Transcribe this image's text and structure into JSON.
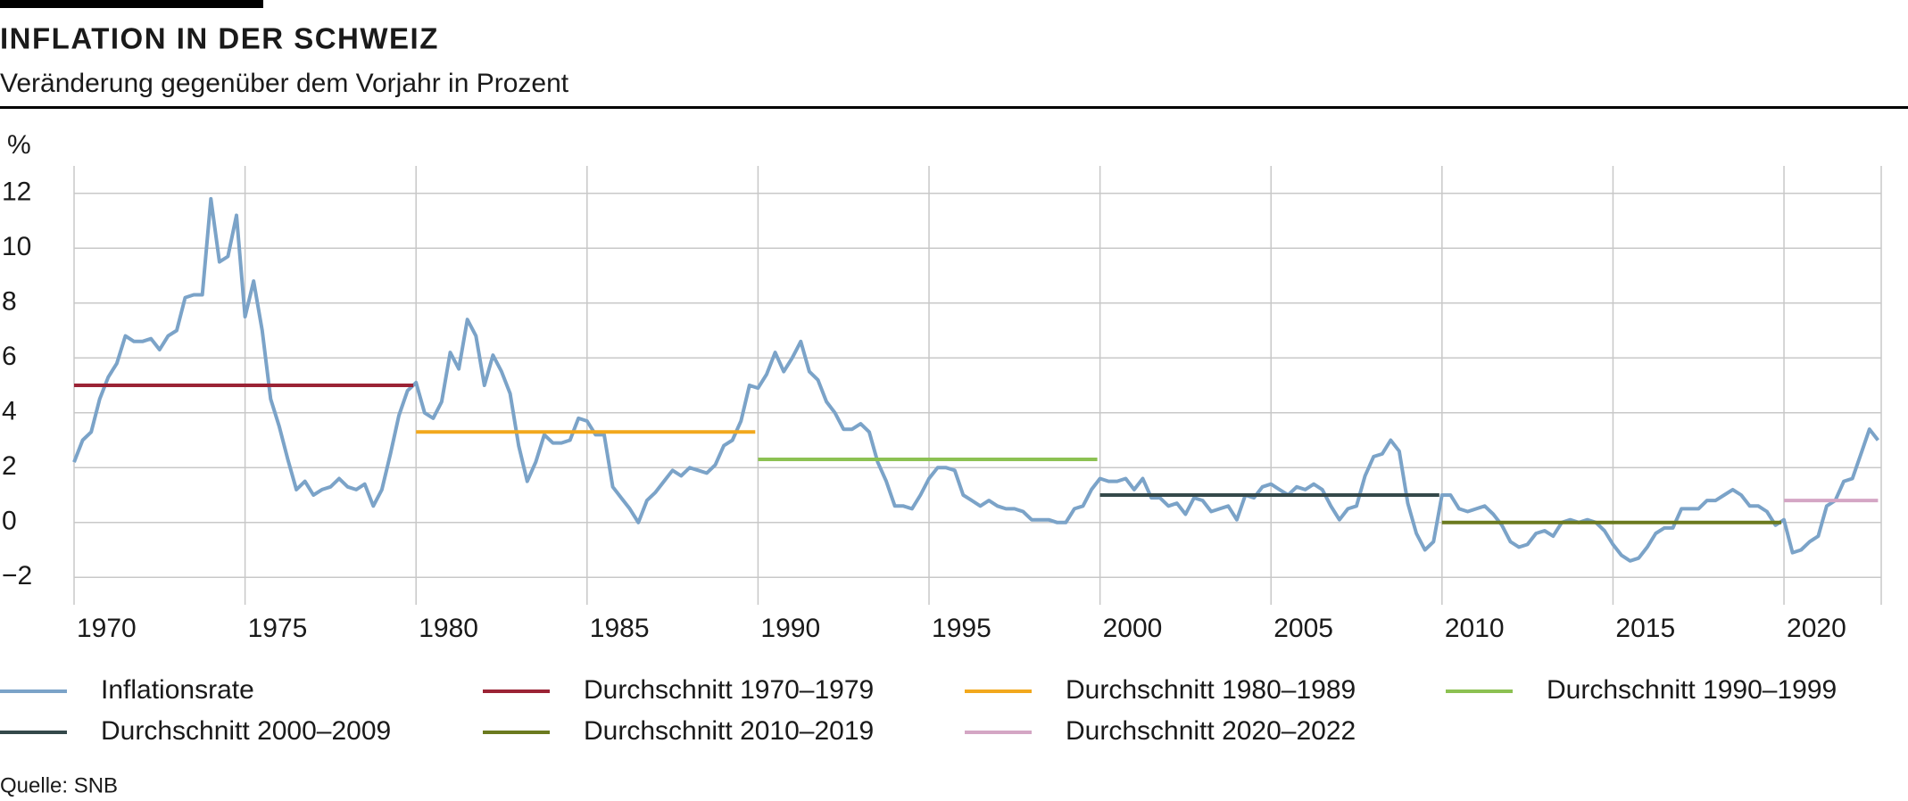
{
  "chart_data": {
    "type": "line",
    "title": "INFLATION IN DER SCHWEIZ",
    "subtitle": "Veränderung gegenüber dem Vorjahr in Prozent",
    "y_label": "%",
    "source": "Quelle: SNB",
    "xlim": [
      1970,
      2023
    ],
    "xticks": [
      1970,
      1975,
      1980,
      1985,
      1990,
      1995,
      2000,
      2005,
      2010,
      2015,
      2020
    ],
    "ylim": [
      -3,
      13
    ],
    "yticks": [
      {
        "value": -2,
        "label": "−2"
      },
      0,
      2,
      4,
      6,
      8,
      10,
      12
    ],
    "grid": true,
    "legend": "bottom",
    "series": [
      {
        "name": "Inflationsrate",
        "color": "#7ba3c8",
        "x": [
          1970,
          1970.25,
          1970.5,
          1970.75,
          1971,
          1971.25,
          1971.5,
          1971.75,
          1972,
          1972.25,
          1972.5,
          1972.75,
          1973,
          1973.25,
          1973.5,
          1973.75,
          1974,
          1974.25,
          1974.5,
          1974.75,
          1975,
          1975.25,
          1975.5,
          1975.75,
          1976,
          1976.25,
          1976.5,
          1976.75,
          1977,
          1977.25,
          1977.5,
          1977.75,
          1978,
          1978.25,
          1978.5,
          1978.75,
          1979,
          1979.25,
          1979.5,
          1979.75,
          1980,
          1980.25,
          1980.5,
          1980.75,
          1981,
          1981.25,
          1981.5,
          1981.75,
          1982,
          1982.25,
          1982.5,
          1982.75,
          1983,
          1983.25,
          1983.5,
          1983.75,
          1984,
          1984.25,
          1984.5,
          1984.75,
          1985,
          1985.25,
          1985.5,
          1985.75,
          1986,
          1986.25,
          1986.5,
          1986.75,
          1987,
          1987.25,
          1987.5,
          1987.75,
          1988,
          1988.25,
          1988.5,
          1988.75,
          1989,
          1989.25,
          1989.5,
          1989.75,
          1990,
          1990.25,
          1990.5,
          1990.75,
          1991,
          1991.25,
          1991.5,
          1991.75,
          1992,
          1992.25,
          1992.5,
          1992.75,
          1993,
          1993.25,
          1993.5,
          1993.75,
          1994,
          1994.25,
          1994.5,
          1994.75,
          1995,
          1995.25,
          1995.5,
          1995.75,
          1996,
          1996.25,
          1996.5,
          1996.75,
          1997,
          1997.25,
          1997.5,
          1997.75,
          1998,
          1998.25,
          1998.5,
          1998.75,
          1999,
          1999.25,
          1999.5,
          1999.75,
          2000,
          2000.25,
          2000.5,
          2000.75,
          2001,
          2001.25,
          2001.5,
          2001.75,
          2002,
          2002.25,
          2002.5,
          2002.75,
          2003,
          2003.25,
          2003.5,
          2003.75,
          2004,
          2004.25,
          2004.5,
          2004.75,
          2005,
          2005.25,
          2005.5,
          2005.75,
          2006,
          2006.25,
          2006.5,
          2006.75,
          2007,
          2007.25,
          2007.5,
          2007.75,
          2008,
          2008.25,
          2008.5,
          2008.75,
          2009,
          2009.25,
          2009.5,
          2009.75,
          2010,
          2010.25,
          2010.5,
          2010.75,
          2011,
          2011.25,
          2011.5,
          2011.75,
          2012,
          2012.25,
          2012.5,
          2012.75,
          2013,
          2013.25,
          2013.5,
          2013.75,
          2014,
          2014.25,
          2014.5,
          2014.75,
          2015,
          2015.25,
          2015.5,
          2015.75,
          2016,
          2016.25,
          2016.5,
          2016.75,
          2017,
          2017.25,
          2017.5,
          2017.75,
          2018,
          2018.25,
          2018.5,
          2018.75,
          2019,
          2019.25,
          2019.5,
          2019.75,
          2020,
          2020.25,
          2020.5,
          2020.75,
          2021,
          2021.25,
          2021.5,
          2021.75,
          2022,
          2022.25,
          2022.5,
          2022.75
        ],
        "values": [
          2.2,
          3.0,
          3.3,
          4.5,
          5.3,
          5.8,
          6.8,
          6.6,
          6.6,
          6.7,
          6.3,
          6.8,
          7.0,
          8.2,
          8.3,
          8.3,
          11.8,
          9.5,
          9.7,
          11.2,
          7.5,
          8.8,
          7.0,
          4.5,
          3.5,
          2.3,
          1.2,
          1.5,
          1.0,
          1.2,
          1.3,
          1.6,
          1.3,
          1.2,
          1.4,
          0.6,
          1.2,
          2.5,
          3.9,
          4.8,
          5.1,
          4.0,
          3.8,
          4.4,
          6.2,
          5.6,
          7.4,
          6.8,
          5.0,
          6.1,
          5.5,
          4.7,
          2.8,
          1.5,
          2.2,
          3.2,
          2.9,
          2.9,
          3.0,
          3.8,
          3.7,
          3.2,
          3.2,
          1.3,
          0.9,
          0.5,
          0.0,
          0.8,
          1.1,
          1.5,
          1.9,
          1.7,
          2.0,
          1.9,
          1.8,
          2.1,
          2.8,
          3.0,
          3.7,
          5.0,
          4.9,
          5.4,
          6.2,
          5.5,
          6.0,
          6.6,
          5.5,
          5.2,
          4.4,
          4.0,
          3.4,
          3.4,
          3.6,
          3.3,
          2.2,
          1.5,
          0.6,
          0.6,
          0.5,
          1.0,
          1.6,
          2.0,
          2.0,
          1.9,
          1.0,
          0.8,
          0.6,
          0.8,
          0.6,
          0.5,
          0.5,
          0.4,
          0.1,
          0.1,
          0.1,
          0.0,
          0.0,
          0.5,
          0.6,
          1.2,
          1.6,
          1.5,
          1.5,
          1.6,
          1.2,
          1.6,
          0.9,
          0.9,
          0.6,
          0.7,
          0.3,
          0.9,
          0.8,
          0.4,
          0.5,
          0.6,
          0.1,
          1.0,
          0.9,
          1.3,
          1.4,
          1.2,
          1.0,
          1.3,
          1.2,
          1.4,
          1.2,
          0.6,
          0.1,
          0.5,
          0.6,
          1.7,
          2.4,
          2.5,
          3.0,
          2.6,
          0.7,
          -0.4,
          -1.0,
          -0.7,
          1.0,
          1.0,
          0.5,
          0.4,
          0.5,
          0.6,
          0.3,
          -0.1,
          -0.7,
          -0.9,
          -0.8,
          -0.4,
          -0.3,
          -0.5,
          0.0,
          0.1,
          0.0,
          0.1,
          0.0,
          -0.3,
          -0.8,
          -1.2,
          -1.4,
          -1.3,
          -0.9,
          -0.4,
          -0.2,
          -0.2,
          0.5,
          0.5,
          0.5,
          0.8,
          0.8,
          1.0,
          1.2,
          1.0,
          0.6,
          0.6,
          0.4,
          -0.1,
          0.1,
          -1.1,
          -1.0,
          -0.7,
          -0.5,
          0.6,
          0.8,
          1.5,
          1.6,
          2.5,
          3.4,
          3.0
        ]
      },
      {
        "name": "Durchschnitt 1970–1979",
        "color": "#9b2335",
        "x": [
          1970,
          1979.92
        ],
        "values": [
          5.0,
          5.0
        ]
      },
      {
        "name": "Durchschnitt 1980–1989",
        "color": "#f2a81d",
        "x": [
          1980,
          1989.92
        ],
        "values": [
          3.3,
          3.3
        ]
      },
      {
        "name": "Durchschnitt 1990–1999",
        "color": "#8cc152",
        "x": [
          1990,
          1999.92
        ],
        "values": [
          2.3,
          2.3
        ]
      },
      {
        "name": "Durchschnitt 2000–2009",
        "color": "#34494a",
        "x": [
          2000,
          2009.92
        ],
        "values": [
          1.0,
          1.0
        ]
      },
      {
        "name": "Durchschnitt 2010–2019",
        "color": "#6b7a1f",
        "x": [
          2010,
          2019.92
        ],
        "values": [
          0.0,
          0.0
        ]
      },
      {
        "name": "Durchschnitt 2020–2022",
        "color": "#d4a6c4",
        "x": [
          2020,
          2022.75
        ],
        "values": [
          0.8,
          0.8
        ]
      }
    ]
  }
}
